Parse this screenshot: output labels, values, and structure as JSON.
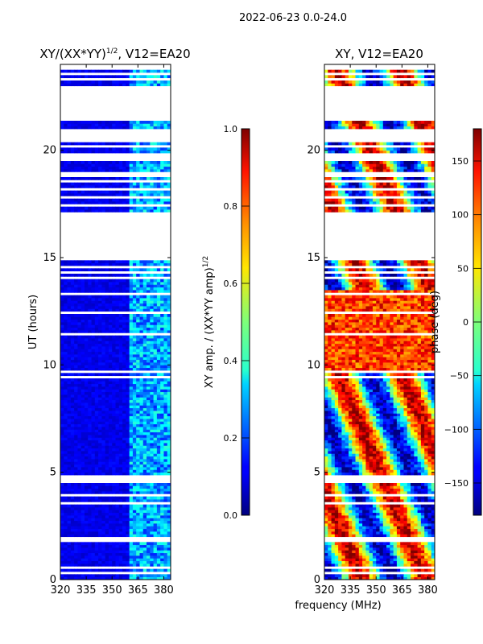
{
  "chart_data": {
    "suptitle": "2022-06-23 0.0-24.0",
    "xlabel": "frequency (MHz)",
    "panels": [
      {
        "type": "heatmap",
        "title_prefix": "XY/(XX*YY)",
        "title_exp": "1/2",
        "title_suffix": ", V12=EA20",
        "ylabel": "UT (hours)",
        "xlim": [
          320,
          384
        ],
        "ylim": [
          0,
          24
        ],
        "xticks": [
          "320",
          "335",
          "350",
          "365",
          "380"
        ],
        "xtick_values": [
          320,
          335,
          350,
          365,
          380
        ],
        "yticks": [
          "0",
          "5",
          "10",
          "15",
          "20"
        ],
        "ytick_values": [
          0,
          5,
          10,
          15,
          20
        ],
        "colorbar": {
          "label_prefix": "XY amp. / (XX*YY amp)",
          "label_exp": "1/2",
          "range": [
            0.0,
            1.0
          ],
          "ticks": [
            "0.0",
            "0.2",
            "0.4",
            "0.6",
            "0.8",
            "1.0"
          ],
          "tick_values": [
            0.0,
            0.2,
            0.4,
            0.6,
            0.8,
            1.0
          ]
        }
      },
      {
        "type": "heatmap",
        "title_prefix": "XY, V12=EA20",
        "title_exp": "",
        "title_suffix": "",
        "ylabel": "",
        "xlim": [
          320,
          384
        ],
        "ylim": [
          0,
          24
        ],
        "xticks": [
          "320",
          "335",
          "350",
          "365",
          "380"
        ],
        "xtick_values": [
          320,
          335,
          350,
          365,
          380
        ],
        "yticks": [
          "0",
          "5",
          "10",
          "15",
          "20"
        ],
        "ytick_values": [
          0,
          5,
          10,
          15,
          20
        ],
        "colorbar": {
          "label_prefix": "phase (deg)",
          "label_exp": "",
          "range": [
            -180,
            180
          ],
          "ticks": [
            "−150",
            "−100",
            "−50",
            "0",
            "50",
            "100",
            "150"
          ],
          "tick_values": [
            -150,
            -100,
            -50,
            0,
            50,
            100,
            150
          ]
        }
      }
    ],
    "gaps_hours": [
      [
        0.1,
        0.15
      ],
      [
        0.3,
        0.35
      ],
      [
        0.5,
        0.6
      ],
      [
        1.8,
        2.0
      ],
      [
        2.5,
        2.55
      ],
      [
        3.0,
        3.05
      ],
      [
        3.35,
        3.4
      ],
      [
        3.55,
        3.6
      ],
      [
        3.9,
        3.95
      ],
      [
        4.55,
        4.9
      ],
      [
        5.0,
        5.05
      ],
      [
        6.0,
        6.05
      ],
      [
        6.5,
        6.55
      ],
      [
        7.2,
        7.25
      ],
      [
        7.6,
        7.65
      ],
      [
        8.0,
        8.05
      ],
      [
        8.5,
        8.55
      ],
      [
        9.4,
        9.45
      ],
      [
        9.5,
        9.55
      ],
      [
        9.6,
        9.7
      ],
      [
        11.2,
        11.25
      ],
      [
        11.4,
        11.45
      ],
      [
        11.85,
        11.9
      ],
      [
        12.2,
        12.25
      ],
      [
        12.35,
        12.45
      ],
      [
        13.0,
        13.05
      ],
      [
        13.3,
        13.4
      ],
      [
        13.6,
        13.65
      ],
      [
        14.05,
        14.15
      ],
      [
        14.3,
        14.35
      ],
      [
        14.55,
        14.6
      ],
      [
        14.75,
        14.8
      ],
      [
        14.9,
        15.0
      ],
      [
        15.05,
        15.45
      ],
      [
        15.5,
        17.1
      ],
      [
        17.4,
        17.5
      ],
      [
        17.8,
        17.9
      ],
      [
        18.1,
        18.2
      ],
      [
        18.5,
        18.6
      ],
      [
        18.8,
        19.0
      ],
      [
        19.25,
        19.3
      ],
      [
        19.5,
        19.7
      ],
      [
        19.8,
        19.85
      ],
      [
        20.1,
        20.2
      ],
      [
        20.35,
        21.0
      ],
      [
        21.4,
        22.95
      ],
      [
        23.3,
        23.4
      ],
      [
        23.55,
        23.65
      ],
      [
        23.8,
        24.0
      ]
    ],
    "bright_band_mhz": [
      361,
      384
    ]
  }
}
